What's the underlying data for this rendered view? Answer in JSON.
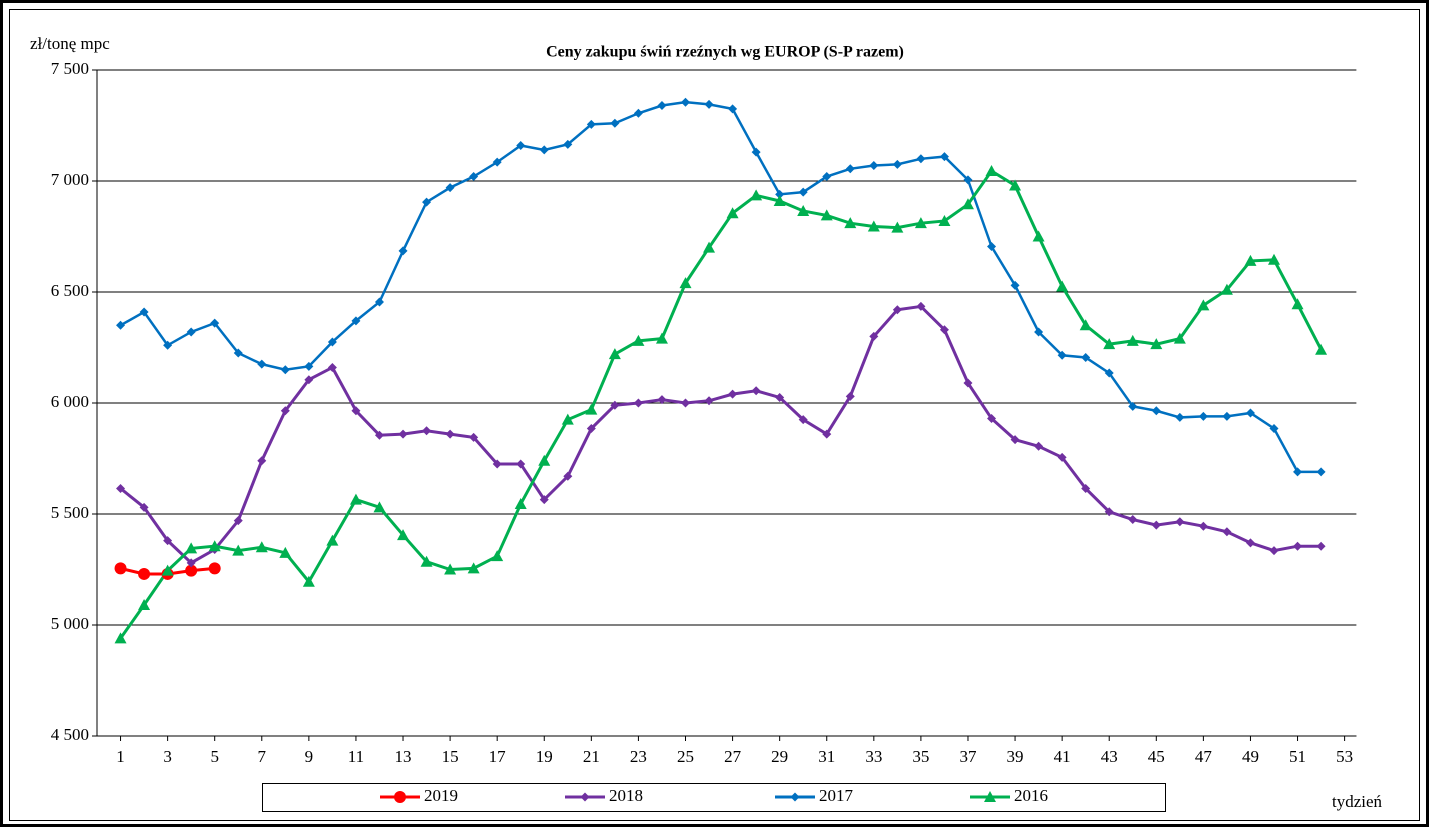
{
  "chart_data": {
    "type": "line",
    "title": "Ceny zakupu świń rzeźnych  wg EUROP (S-P razem)",
    "y_label": "zł/tonę  mpc",
    "x_label": "tydzień",
    "x": [
      1,
      2,
      3,
      4,
      5,
      6,
      7,
      8,
      9,
      10,
      11,
      12,
      13,
      14,
      15,
      16,
      17,
      18,
      19,
      20,
      21,
      22,
      23,
      24,
      25,
      26,
      27,
      28,
      29,
      30,
      31,
      32,
      33,
      34,
      35,
      36,
      37,
      38,
      39,
      40,
      41,
      42,
      43,
      44,
      45,
      46,
      47,
      48,
      49,
      50,
      51,
      52
    ],
    "xlim": [
      0,
      53.5
    ],
    "xticks": [
      1,
      3,
      5,
      7,
      9,
      11,
      13,
      15,
      17,
      19,
      21,
      23,
      25,
      27,
      29,
      31,
      33,
      35,
      37,
      39,
      41,
      43,
      45,
      47,
      49,
      51,
      53
    ],
    "ylim": [
      4500,
      7500
    ],
    "yticks": [
      {
        "value": 4500,
        "label": "4 500"
      },
      {
        "value": 5000,
        "label": "5 000"
      },
      {
        "value": 5500,
        "label": "5 500"
      },
      {
        "value": 6000,
        "label": "6 000"
      },
      {
        "value": 6500,
        "label": "6 500"
      },
      {
        "value": 7000,
        "label": "7 000"
      },
      {
        "value": 7500,
        "label": "7 500"
      }
    ],
    "grid": true,
    "legend": "bottom",
    "series": [
      {
        "name": "2019",
        "color": "#ff0000",
        "marker": "circle",
        "values": [
          5255,
          5230,
          5230,
          5245,
          5255,
          null,
          null,
          null,
          null,
          null,
          null,
          null,
          null,
          null,
          null,
          null,
          null,
          null,
          null,
          null,
          null,
          null,
          null,
          null,
          null,
          null,
          null,
          null,
          null,
          null,
          null,
          null,
          null,
          null,
          null,
          null,
          null,
          null,
          null,
          null,
          null,
          null,
          null,
          null,
          null,
          null,
          null,
          null,
          null,
          null,
          null,
          null
        ]
      },
      {
        "name": "2018",
        "color": "#7030a0",
        "marker": "diamond",
        "values": [
          5615,
          5530,
          5380,
          5280,
          5340,
          5470,
          5740,
          5965,
          6105,
          6160,
          5965,
          5855,
          5860,
          5875,
          5860,
          5845,
          5725,
          5725,
          5565,
          5670,
          5885,
          5990,
          6000,
          6015,
          6000,
          6010,
          6040,
          6055,
          6025,
          5925,
          5860,
          6030,
          6300,
          6420,
          6435,
          6330,
          6090,
          5930,
          5835,
          5805,
          5755,
          5615,
          5510,
          5475,
          5450,
          5465,
          5445,
          5420,
          5370,
          5335,
          5355,
          5355
        ]
      },
      {
        "name": "2017",
        "color": "#0070c0",
        "marker": "diamond",
        "values": [
          6350,
          6410,
          6260,
          6320,
          6360,
          6225,
          6175,
          6150,
          6165,
          6275,
          6370,
          6455,
          6685,
          6905,
          6970,
          7020,
          7085,
          7160,
          7140,
          7165,
          7255,
          7260,
          7305,
          7340,
          7355,
          7345,
          7325,
          7130,
          6940,
          6950,
          7020,
          7055,
          7070,
          7075,
          7100,
          7110,
          7005,
          6705,
          6530,
          6320,
          6215,
          6205,
          6135,
          5985,
          5965,
          5935,
          5940,
          5940,
          5955,
          5885,
          5690,
          5690
        ]
      },
      {
        "name": "2016",
        "color": "#00b050",
        "marker": "triangle",
        "values": [
          4940,
          5090,
          5245,
          5345,
          5355,
          5335,
          5350,
          5325,
          5195,
          5380,
          5565,
          5530,
          5405,
          5285,
          5250,
          5255,
          5310,
          5545,
          5740,
          5925,
          5970,
          6220,
          6280,
          6290,
          6540,
          6700,
          6855,
          6935,
          6910,
          6865,
          6845,
          6810,
          6795,
          6790,
          6810,
          6820,
          6895,
          7045,
          6980,
          6750,
          6525,
          6350,
          6265,
          6280,
          6265,
          6290,
          6440,
          6510,
          6640,
          6645,
          6445,
          6240
        ]
      }
    ]
  }
}
